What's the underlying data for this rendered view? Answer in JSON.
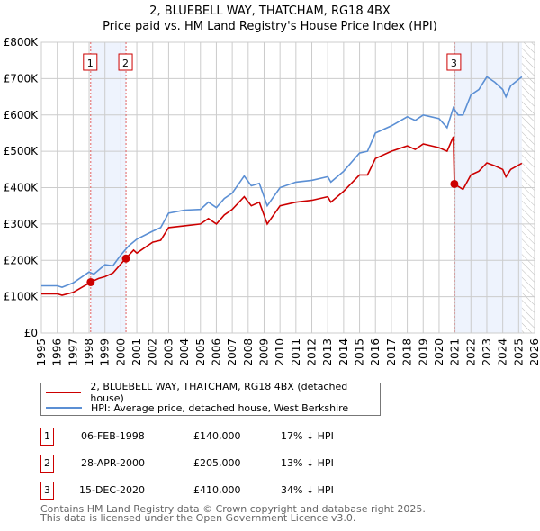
{
  "chart_data": {
    "type": "line",
    "title": "2, BLUEBELL WAY, THATCHAM, RG18 4BX",
    "subtitle": "Price paid vs. HM Land Registry's House Price Index (HPI)",
    "xlim": [
      1995,
      2026
    ],
    "ylim": [
      0,
      800000
    ],
    "x_ticks": [
      "1995",
      "1996",
      "1997",
      "1998",
      "1999",
      "2000",
      "2001",
      "2002",
      "2003",
      "2004",
      "2005",
      "2006",
      "2007",
      "2008",
      "2009",
      "2010",
      "2011",
      "2012",
      "2013",
      "2014",
      "2015",
      "2016",
      "2017",
      "2018",
      "2019",
      "2020",
      "2021",
      "2022",
      "2023",
      "2024",
      "2025",
      "2026"
    ],
    "y_ticks": [
      {
        "v": 0,
        "label": "£0"
      },
      {
        "v": 100000,
        "label": "£100K"
      },
      {
        "v": 200000,
        "label": "£200K"
      },
      {
        "v": 300000,
        "label": "£300K"
      },
      {
        "v": 400000,
        "label": "£400K"
      },
      {
        "v": 500000,
        "label": "£500K"
      },
      {
        "v": 600000,
        "label": "£600K"
      },
      {
        "v": 700000,
        "label": "£700K"
      },
      {
        "v": 800000,
        "label": "£800K"
      }
    ],
    "grid": true,
    "series": [
      {
        "name": "2, BLUEBELL WAY, THATCHAM, RG18 4BX (detached house)",
        "color": "#cc0000",
        "x": [
          1995,
          1996,
          1996.3,
          1997,
          1998.1,
          1998.6,
          1999,
          1999.5,
          2000.3,
          2000.8,
          2001,
          2002,
          2002.5,
          2003,
          2004,
          2005,
          2005.5,
          2006,
          2006.5,
          2007,
          2007.75,
          2008.2,
          2008.7,
          2009.2,
          2010,
          2011,
          2012,
          2013,
          2013.2,
          2014,
          2015,
          2015.5,
          2016,
          2017,
          2018,
          2018.5,
          2019,
          2020,
          2020.5,
          2020.9,
          2020.96,
          2021.5,
          2022,
          2022.5,
          2023,
          2023.5,
          2024,
          2024.2,
          2024.5,
          2025.2
        ],
        "y": [
          108000,
          108000,
          104000,
          112000,
          140000,
          150000,
          155000,
          165000,
          205000,
          228000,
          220000,
          250000,
          255000,
          290000,
          295000,
          300000,
          315000,
          300000,
          325000,
          340000,
          375000,
          350000,
          360000,
          300000,
          350000,
          360000,
          365000,
          375000,
          360000,
          390000,
          435000,
          435000,
          480000,
          500000,
          515000,
          505000,
          520000,
          510000,
          500000,
          540000,
          410000,
          395000,
          435000,
          445000,
          468000,
          460000,
          450000,
          430000,
          450000,
          467000
        ]
      },
      {
        "name": "HPI: Average price, detached house, West Berkshire",
        "color": "#5b8fd4",
        "x": [
          1995,
          1996,
          1996.3,
          1997,
          1998,
          1998.3,
          1999,
          1999.5,
          2000,
          2000.5,
          2001,
          2002,
          2002.5,
          2003,
          2004,
          2005,
          2005.5,
          2006,
          2006.5,
          2007,
          2007.75,
          2008.2,
          2008.7,
          2009.2,
          2010,
          2011,
          2012,
          2013,
          2013.2,
          2014,
          2015,
          2015.5,
          2016,
          2017,
          2018,
          2018.5,
          2019,
          2020,
          2020.5,
          2020.9,
          2021.2,
          2021.5,
          2022,
          2022.5,
          2023,
          2023.5,
          2024,
          2024.2,
          2024.5,
          2025.2
        ],
        "y": [
          130000,
          130000,
          126000,
          138000,
          168000,
          162000,
          188000,
          185000,
          215000,
          240000,
          258000,
          280000,
          290000,
          330000,
          338000,
          340000,
          360000,
          345000,
          370000,
          385000,
          432000,
          405000,
          412000,
          350000,
          400000,
          415000,
          420000,
          430000,
          415000,
          445000,
          495000,
          500000,
          550000,
          570000,
          595000,
          585000,
          600000,
          590000,
          565000,
          620000,
          600000,
          600000,
          655000,
          670000,
          705000,
          690000,
          670000,
          650000,
          680000,
          705000
        ]
      }
    ],
    "transactions": [
      {
        "id": "1",
        "date": "06-FEB-1998",
        "x": 1998.1,
        "price": 140000,
        "price_label": "£140,000",
        "hpi": "17% ↓ HPI"
      },
      {
        "id": "2",
        "date": "28-APR-2000",
        "x": 2000.32,
        "price": 205000,
        "price_label": "£205,000",
        "hpi": "13% ↓ HPI"
      },
      {
        "id": "3",
        "date": "15-DEC-2020",
        "x": 2020.96,
        "price": 410000,
        "price_label": "£410,000",
        "hpi": "34% ↓ HPI"
      }
    ],
    "shaded_ranges": [
      [
        1998.1,
        2000.32
      ],
      [
        2020.96,
        2025.2
      ]
    ],
    "forecast_hatch_from": 2025.2,
    "legend_placement": "below"
  },
  "footer": {
    "line1": "Contains HM Land Registry data © Crown copyright and database right 2025.",
    "line2": "This data is licensed under the Open Government Licence v3.0."
  }
}
